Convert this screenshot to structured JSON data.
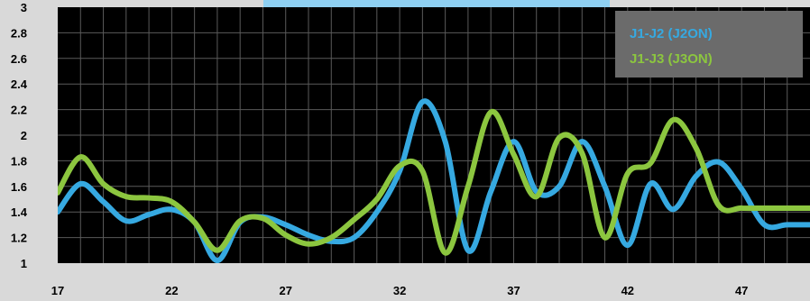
{
  "chart_data": {
    "type": "line",
    "title": "",
    "xlabel": "",
    "ylabel": "",
    "xlim": [
      17,
      50
    ],
    "ylim": [
      1,
      3
    ],
    "y_ticks": [
      "1",
      "1.2",
      "1.4",
      "1.6",
      "1.8",
      "2",
      "2.2",
      "2.4",
      "2.6",
      "2.8",
      "3"
    ],
    "x_ticks": [
      "17",
      "22",
      "27",
      "32",
      "37",
      "42",
      "47"
    ],
    "grid": true,
    "legend_position": "top-right",
    "series": [
      {
        "name": "J1-J2 (J2ON)",
        "color": "#36a9e1",
        "x": [
          17,
          18,
          19,
          20,
          21,
          22,
          23,
          24,
          25,
          26,
          27,
          28,
          29,
          30,
          31,
          32,
          33,
          34,
          35,
          36,
          37,
          38,
          39,
          40,
          41,
          42,
          43,
          44,
          45,
          46,
          47,
          48,
          49,
          50
        ],
        "values": [
          1.4,
          1.62,
          1.48,
          1.33,
          1.38,
          1.42,
          1.32,
          1.02,
          1.32,
          1.36,
          1.3,
          1.22,
          1.17,
          1.2,
          1.4,
          1.72,
          2.26,
          1.95,
          1.1,
          1.56,
          1.95,
          1.56,
          1.6,
          1.95,
          1.6,
          1.14,
          1.62,
          1.42,
          1.68,
          1.79,
          1.58,
          1.3,
          1.3,
          1.3
        ]
      },
      {
        "name": "J1-J3 (J3ON)",
        "color": "#8cc63f",
        "x": [
          17,
          18,
          19,
          20,
          21,
          22,
          23,
          24,
          25,
          26,
          27,
          28,
          29,
          30,
          31,
          32,
          33,
          34,
          35,
          36,
          37,
          38,
          39,
          40,
          41,
          42,
          43,
          44,
          45,
          46,
          47,
          48,
          49,
          50
        ],
        "values": [
          1.55,
          1.83,
          1.62,
          1.52,
          1.51,
          1.48,
          1.32,
          1.1,
          1.33,
          1.35,
          1.22,
          1.15,
          1.2,
          1.34,
          1.5,
          1.76,
          1.72,
          1.08,
          1.6,
          2.18,
          1.85,
          1.52,
          1.98,
          1.86,
          1.2,
          1.7,
          1.78,
          2.12,
          1.9,
          1.45,
          1.43,
          1.43,
          1.43,
          1.43
        ]
      }
    ]
  }
}
